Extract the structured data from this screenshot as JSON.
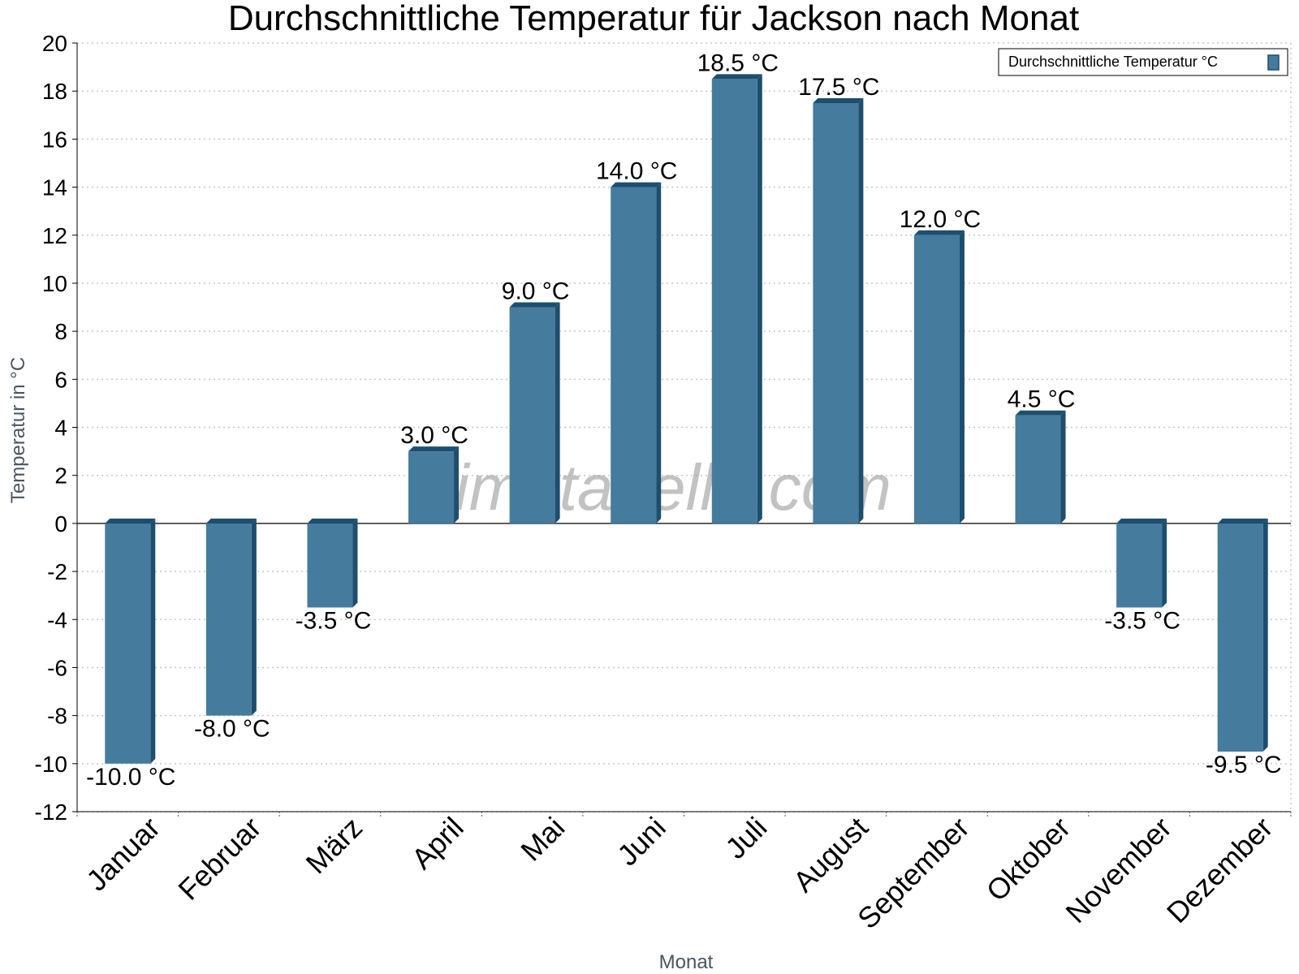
{
  "chart_data": {
    "type": "bar",
    "title": "Durchschnittliche Temperatur für Jackson nach Monat",
    "xlabel": "Monat",
    "ylabel": "Temperatur in °C",
    "ylim": [
      -12,
      20
    ],
    "yticks": [
      20,
      18,
      16,
      14,
      12,
      10,
      8,
      6,
      4,
      2,
      0,
      -2,
      -4,
      -6,
      -8,
      -10,
      -12
    ],
    "grid": true,
    "legend_position": "top-right",
    "categories": [
      "Januar",
      "Februar",
      "März",
      "April",
      "Mai",
      "Juni",
      "Juli",
      "August",
      "September",
      "Oktober",
      "November",
      "Dezember"
    ],
    "series": [
      {
        "name": "Durchschnittliche Temperatur °C",
        "values": [
          -10.0,
          -8.0,
          -3.5,
          3.0,
          9.0,
          14.0,
          18.5,
          17.5,
          12.0,
          4.5,
          -3.5,
          -9.5
        ],
        "labels": [
          "-10.0 °C",
          "-8.0 °C",
          "-3.5 °C",
          "3.0 °C",
          "9.0 °C",
          "14.0 °C",
          "18.5 °C",
          "17.5 °C",
          "12.0 °C",
          "4.5 °C",
          "-3.5 °C",
          "-9.5 °C"
        ]
      }
    ],
    "colors": {
      "bar": "#457b9d",
      "bar_side": "#1d4e6e",
      "grid": "#c8c8c8",
      "axis": "#000000"
    },
    "watermark": "klimatabelle.com"
  }
}
